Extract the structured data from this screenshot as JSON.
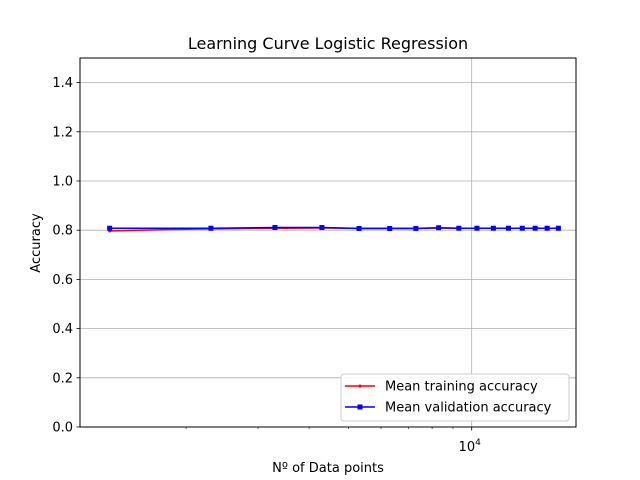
{
  "chart_data": {
    "type": "line",
    "title": "Learning Curve Logistic Regression",
    "xlabel": "Nº of Data points",
    "ylabel": "Accuracy",
    "x_scale": "log",
    "xlim": [
      1100,
      18000
    ],
    "ylim": [
      0.0,
      1.5
    ],
    "grid": true,
    "legend_position": "lower right",
    "x_tick_labels": [
      {
        "value": 10000,
        "base": "10",
        "exp": "4"
      }
    ],
    "y_ticks": [
      0.0,
      0.2,
      0.4,
      0.6,
      0.8,
      1.0,
      1.2,
      1.4
    ],
    "y_tick_labels": [
      "0.0",
      "0.2",
      "0.4",
      "0.6",
      "0.8",
      "1.0",
      "1.2",
      "1.4"
    ],
    "x": [
      1300,
      2300,
      3300,
      4300,
      5300,
      6300,
      7300,
      8300,
      9300,
      10300,
      11300,
      12300,
      13300,
      14300,
      15300,
      16300
    ],
    "series": [
      {
        "name": "Mean training accuracy",
        "color": "#ff0000",
        "marker": "dot",
        "values": [
          0.797,
          0.806,
          0.808,
          0.809,
          0.808,
          0.808,
          0.808,
          0.809,
          0.808,
          0.808,
          0.808,
          0.808,
          0.808,
          0.808,
          0.808,
          0.808
        ]
      },
      {
        "name": "Mean validation accuracy",
        "color": "#0000ff",
        "marker": "square",
        "values": [
          0.808,
          0.808,
          0.811,
          0.811,
          0.807,
          0.807,
          0.807,
          0.81,
          0.808,
          0.808,
          0.808,
          0.808,
          0.808,
          0.808,
          0.808,
          0.808
        ]
      }
    ]
  }
}
